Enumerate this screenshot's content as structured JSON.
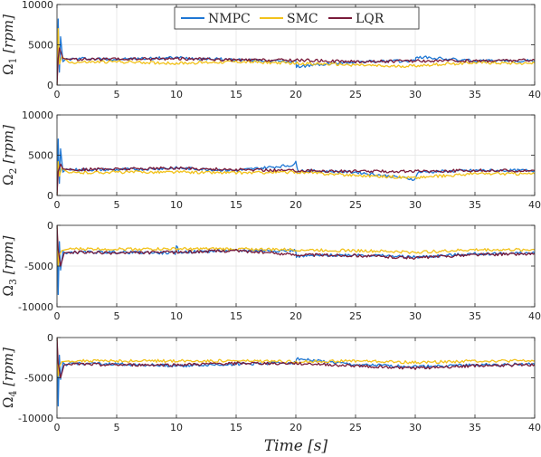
{
  "chart_data": {
    "type": "line",
    "xlabel": "Time [s]",
    "xlim": [
      0,
      40
    ],
    "xticks": [
      0,
      5,
      10,
      15,
      20,
      25,
      30,
      35,
      40
    ],
    "grid": true,
    "legend": {
      "placement": "top-center",
      "entries": [
        {
          "name": "NMPC",
          "color": "#1f77d4"
        },
        {
          "name": "SMC",
          "color": "#f2c21b"
        },
        {
          "name": "LQR",
          "color": "#7a1b3a"
        }
      ]
    },
    "panels": [
      {
        "ylabel_symbol": "Ω",
        "ylabel_sub": "1",
        "ylabel_unit": "[rpm]",
        "ylim": [
          0,
          10000
        ],
        "yticks": [
          0,
          5000,
          10000
        ],
        "ytick_labels": [
          "0",
          "5000",
          "10000"
        ],
        "series": [
          {
            "name": "NMPC",
            "x": [
              0,
              0.1,
              0.2,
              0.3,
              0.5,
              0.8,
              1,
              2,
              5,
              10,
              20,
              20.05,
              25,
              30,
              30.05,
              35,
              40
            ],
            "values": [
              0,
              8200,
              1600,
              6000,
              2900,
              3300,
              3200,
              3300,
              3200,
              3400,
              2900,
              2300,
              2900,
              3000,
              3500,
              3000,
              3000
            ]
          },
          {
            "name": "SMC",
            "x": [
              0,
              0.1,
              0.2,
              0.4,
              0.8,
              1,
              5,
              10,
              15,
              20,
              25,
              28,
              30,
              35,
              40
            ],
            "values": [
              0,
              7000,
              2600,
              3500,
              3100,
              2800,
              2900,
              2700,
              2900,
              2700,
              2500,
              2300,
              2400,
              2800,
              2700
            ]
          },
          {
            "name": "LQR",
            "x": [
              0,
              0.1,
              0.2,
              0.5,
              1,
              5,
              10,
              15,
              20,
              25,
              30,
              35,
              40
            ],
            "values": [
              0,
              3300,
              4600,
              3300,
              3200,
              3200,
              3300,
              3100,
              3100,
              2900,
              3000,
              3000,
              3100
            ]
          }
        ]
      },
      {
        "ylabel_symbol": "Ω",
        "ylabel_sub": "2",
        "ylabel_unit": "[rpm]",
        "ylim": [
          0,
          10000
        ],
        "yticks": [
          0,
          5000,
          10000
        ],
        "ytick_labels": [
          "0",
          "5000",
          "10000"
        ],
        "series": [
          {
            "name": "NMPC",
            "x": [
              0,
              0.1,
              0.2,
              0.3,
              0.5,
              0.8,
              1,
              5,
              10,
              15,
              19.9,
              20,
              20.2,
              25,
              30,
              30.2,
              35,
              40
            ],
            "values": [
              0,
              7000,
              1500,
              5800,
              2900,
              3300,
              3200,
              3200,
              3400,
              3100,
              3800,
              4200,
              3100,
              2900,
              2000,
              2900,
              3100,
              3100
            ]
          },
          {
            "name": "SMC",
            "x": [
              0,
              0.1,
              0.2,
              0.4,
              1,
              5,
              10,
              15,
              20,
              25,
              30,
              35,
              40
            ],
            "values": [
              0,
              4200,
              2400,
              3400,
              2800,
              2900,
              2900,
              2800,
              2900,
              2500,
              2200,
              2700,
              2700
            ]
          },
          {
            "name": "LQR",
            "x": [
              0,
              0.1,
              0.3,
              0.5,
              1,
              5,
              10,
              15,
              20,
              25,
              30,
              35,
              40
            ],
            "values": [
              0,
              3000,
              3900,
              3300,
              3200,
              3300,
              3400,
              3200,
              3100,
              3000,
              3000,
              3100,
              3100
            ]
          }
        ]
      },
      {
        "ylabel_symbol": "Ω",
        "ylabel_sub": "3",
        "ylabel_unit": "[rpm]",
        "ylim": [
          -10000,
          0
        ],
        "yticks": [
          -10000,
          -5000,
          0
        ],
        "ytick_labels": [
          "-10000",
          "-5000",
          "0"
        ],
        "series": [
          {
            "name": "NMPC",
            "x": [
              0,
              0.1,
              0.2,
              0.3,
              0.5,
              0.8,
              1,
              5,
              9.9,
              10,
              10.2,
              15,
              20,
              20.05,
              25,
              30,
              35,
              40
            ],
            "values": [
              0,
              -8500,
              -2000,
              -5500,
              -3200,
              -3500,
              -3300,
              -3300,
              -3400,
              -2400,
              -3300,
              -3100,
              -3100,
              -3800,
              -3600,
              -3900,
              -3500,
              -3400
            ]
          },
          {
            "name": "SMC",
            "x": [
              0,
              0.1,
              0.2,
              0.4,
              1,
              5,
              10,
              15,
              20,
              25,
              30,
              35,
              40
            ],
            "values": [
              0,
              -5000,
              -3600,
              -3100,
              -2900,
              -2900,
              -2900,
              -2900,
              -3000,
              -3100,
              -3300,
              -3000,
              -3000
            ]
          },
          {
            "name": "LQR",
            "x": [
              0,
              0.1,
              0.3,
              0.6,
              1,
              5,
              10,
              15,
              20,
              25,
              30,
              35,
              40
            ],
            "values": [
              0,
              -3000,
              -5000,
              -3400,
              -3300,
              -3400,
              -3300,
              -3100,
              -3600,
              -3700,
              -4000,
              -3600,
              -3500
            ]
          }
        ]
      },
      {
        "ylabel_symbol": "Ω",
        "ylabel_sub": "4",
        "ylabel_unit": "[rpm]",
        "ylim": [
          -10000,
          0
        ],
        "yticks": [
          -10000,
          -5000,
          0
        ],
        "ytick_labels": [
          "-10000",
          "-5000",
          "0"
        ],
        "series": [
          {
            "name": "NMPC",
            "x": [
              0,
              0.1,
              0.2,
              0.3,
              0.5,
              0.8,
              1,
              5,
              10,
              15,
              20,
              20.05,
              25,
              30,
              35,
              40
            ],
            "values": [
              0,
              -8500,
              -2200,
              -5200,
              -3100,
              -3500,
              -3200,
              -3300,
              -3500,
              -3300,
              -3100,
              -2600,
              -3400,
              -3600,
              -3400,
              -3300
            ]
          },
          {
            "name": "SMC",
            "x": [
              0,
              0.1,
              0.2,
              0.4,
              1,
              5,
              10,
              15,
              20,
              25,
              30,
              35,
              40
            ],
            "values": [
              0,
              -4800,
              -3600,
              -3000,
              -2900,
              -2900,
              -2900,
              -2900,
              -3000,
              -2900,
              -3100,
              -2900,
              -2900
            ]
          },
          {
            "name": "LQR",
            "x": [
              0,
              0.1,
              0.3,
              0.6,
              1,
              5,
              10,
              15,
              20,
              25,
              30,
              35,
              40
            ],
            "values": [
              0,
              -3200,
              -5000,
              -3400,
              -3300,
              -3400,
              -3400,
              -3200,
              -3200,
              -3500,
              -3800,
              -3500,
              -3400
            ]
          }
        ]
      }
    ]
  }
}
